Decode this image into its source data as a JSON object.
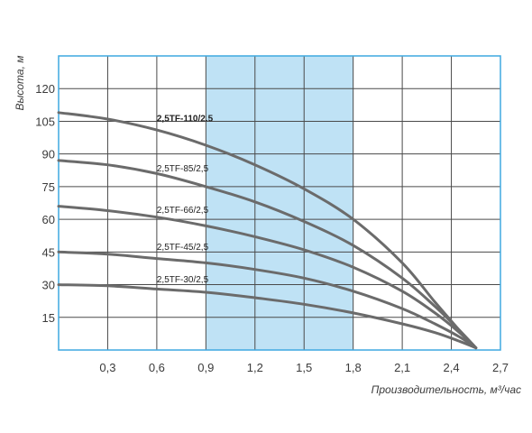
{
  "colors": {
    "grid": "#4a4a4a",
    "border": "#3fa9e0",
    "band": "#bfe2f5",
    "curve": "#6b6b6b",
    "text": "#3b3b3b"
  },
  "chart_data": {
    "type": "line",
    "title": "",
    "xlabel": "Производительность, м³/час",
    "ylabel": "Высота, м",
    "xlim": [
      0,
      2.7
    ],
    "ylim": [
      0,
      135
    ],
    "grid": true,
    "legend": "labels on curves",
    "x_ticks": [
      0.3,
      0.6,
      0.9,
      1.2,
      1.5,
      1.8,
      2.1,
      2.4,
      2.7
    ],
    "x_tick_labels": [
      "0,3",
      "0,6",
      "0,9",
      "1,2",
      "1,5",
      "1,8",
      "2,1",
      "2,4",
      "2,7"
    ],
    "y_ticks": [
      15,
      30,
      45,
      60,
      75,
      90,
      105,
      120
    ],
    "y_tick_labels": [
      "15",
      "30",
      "45",
      "60",
      "75",
      "90",
      "105",
      "120"
    ],
    "highlight_band": {
      "x_from": 0.9,
      "x_to": 1.8
    },
    "series": [
      {
        "name": "2,5TF-110/2.5",
        "label_at": [
          0.6,
          105
        ],
        "x": [
          0,
          0.3,
          0.6,
          0.9,
          1.2,
          1.5,
          1.8,
          2.1,
          2.3,
          2.45,
          2.55
        ],
        "y": [
          109,
          106,
          101,
          94,
          85,
          74,
          60,
          40,
          22,
          9,
          1
        ]
      },
      {
        "name": "2,5TF-85/2,5",
        "label_at": [
          0.6,
          82
        ],
        "x": [
          0,
          0.3,
          0.6,
          0.9,
          1.2,
          1.5,
          1.8,
          2.1,
          2.3,
          2.45,
          2.55
        ],
        "y": [
          87,
          85,
          81,
          75,
          68,
          59,
          48,
          33,
          20,
          9,
          1
        ]
      },
      {
        "name": "2,5TF-66/2,5",
        "label_at": [
          0.6,
          63
        ],
        "x": [
          0,
          0.3,
          0.6,
          0.9,
          1.2,
          1.5,
          1.8,
          2.1,
          2.3,
          2.45,
          2.55
        ],
        "y": [
          66,
          64,
          61,
          57,
          52,
          46,
          38,
          27,
          17,
          8,
          1
        ]
      },
      {
        "name": "2,5TF-45/2,5",
        "label_at": [
          0.6,
          46
        ],
        "x": [
          0,
          0.3,
          0.6,
          0.9,
          1.2,
          1.5,
          1.8,
          2.1,
          2.3,
          2.45,
          2.55
        ],
        "y": [
          45,
          44,
          42,
          40,
          37,
          33,
          27,
          19,
          12,
          6,
          1
        ]
      },
      {
        "name": "2,5TF-30/2,5",
        "label_at": [
          0.6,
          31
        ],
        "x": [
          0,
          0.3,
          0.6,
          0.9,
          1.2,
          1.5,
          1.8,
          2.1,
          2.3,
          2.45,
          2.55
        ],
        "y": [
          30,
          29.5,
          28,
          26.5,
          24,
          21,
          17,
          12,
          8,
          4,
          1
        ]
      }
    ]
  }
}
